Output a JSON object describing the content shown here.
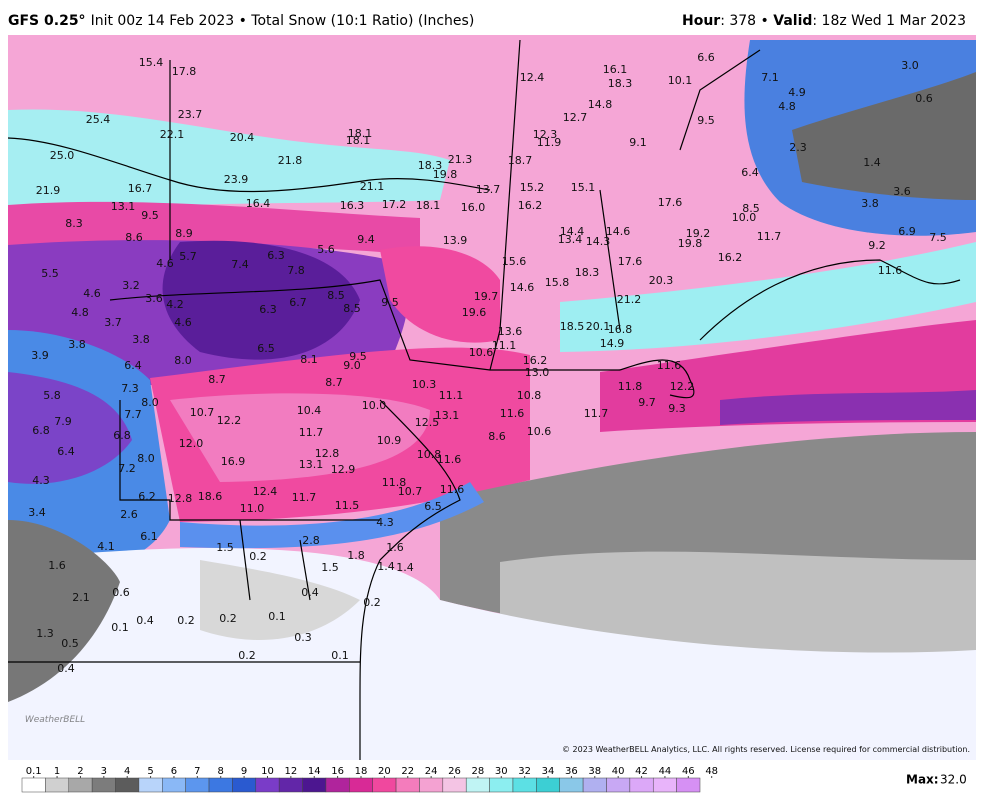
{
  "header": {
    "model": "GFS 0.25°",
    "subtitle": "Init 00z 14 Feb 2023 • Total Snow (10:1 Ratio) (Inches)",
    "hour_label": "Hour",
    "hour_text": ": 378 • ",
    "valid_label": "Valid",
    "valid_text": ": 18z Wed 1 Mar 2023"
  },
  "map": {
    "labels": [
      "15.4",
      "17.8",
      "23.7",
      "25.4",
      "22.1",
      "20.4",
      "18.1",
      "18.1",
      "12.4",
      "16.1",
      "18.3",
      "10.1",
      "6.6",
      "7.1",
      "3.0",
      "0.6",
      "4.9",
      "4.8",
      "14.8",
      "12.7",
      "9.5",
      "12.3",
      "11.9",
      "9.1",
      "2.3",
      "1.4",
      "25.0",
      "21.8",
      "21.3",
      "18.7",
      "18.3",
      "19.8",
      "23.9",
      "21.1",
      "15.2",
      "15.1",
      "6.4",
      "21.9",
      "16.7",
      "13.7",
      "13.1",
      "9.5",
      "16.4",
      "16.3",
      "17.2",
      "18.1",
      "16.0",
      "16.2",
      "17.6",
      "8.5",
      "10.0",
      "3.6",
      "3.8",
      "8.3",
      "8.6",
      "8.9",
      "9.4",
      "13.9",
      "14.4",
      "13.4",
      "14.3",
      "14.6",
      "19.2",
      "19.8",
      "11.7",
      "9.2",
      "6.9",
      "7.5",
      "6.3",
      "5.6",
      "4.6",
      "5.7",
      "7.4",
      "7.8",
      "15.6",
      "17.6",
      "16.2",
      "5.5",
      "18.3",
      "11.6",
      "20.3",
      "14.6",
      "15.8",
      "3.2",
      "4.6",
      "8.5",
      "9.5",
      "8.5",
      "19.7",
      "21.2",
      "3.6",
      "4.2",
      "6.7",
      "6.3",
      "4.8",
      "19.6",
      "3.7",
      "4.6",
      "18.5",
      "20.1",
      "16.8",
      "13.6",
      "3.8",
      "3.8",
      "6.5",
      "14.9",
      "10.6",
      "11.1",
      "3.9",
      "8.0",
      "8.1",
      "9.5",
      "9.0",
      "16.2",
      "6.4",
      "11.6",
      "13.0",
      "8.7",
      "8.7",
      "10.3",
      "7.3",
      "11.1",
      "10.8",
      "11.8",
      "12.2",
      "5.8",
      "8.0",
      "9.7",
      "9.3",
      "10.7",
      "10.4",
      "10.0",
      "7.7",
      "7.9",
      "12.2",
      "12.5",
      "13.1",
      "11.6",
      "11.7",
      "6.8",
      "11.7",
      "10.6",
      "6.8",
      "8.6",
      "12.0",
      "10.9",
      "6.4",
      "16.9",
      "13.1",
      "10.8",
      "11.6",
      "12.8",
      "12.9",
      "8.0",
      "7.2",
      "4.3",
      "11.8",
      "12.4",
      "11.6",
      "10.7",
      "6.2",
      "12.8",
      "18.6",
      "11.7",
      "11.0",
      "11.5",
      "6.5",
      "3.4",
      "2.6",
      "4.3",
      "6.1",
      "2.8",
      "4.1",
      "1.5",
      "0.2",
      "1.6",
      "1.8",
      "1.5",
      "1.4",
      "1.4",
      "1.6",
      "0.6",
      "0.4",
      "2.1",
      "0.2",
      "0.1",
      "0.4",
      "0.2",
      "0.2",
      "0.1",
      "1.3",
      "0.3",
      "0.5",
      "0.2",
      "0.1",
      "0.4"
    ]
  },
  "logo": "WeatherBELL",
  "copyright": "© 2023 WeatherBELL Analytics, LLC. All rights reserved. License required for commercial distribution.",
  "colorbar": {
    "ticks": [
      "0.1",
      "1",
      "2",
      "3",
      "4",
      "5",
      "6",
      "7",
      "8",
      "9",
      "10",
      "12",
      "14",
      "16",
      "18",
      "20",
      "22",
      "24",
      "26",
      "28",
      "30",
      "32",
      "34",
      "36",
      "38",
      "40",
      "42",
      "44",
      "46",
      "48"
    ],
    "colors": [
      "#ffffff",
      "#d0d0d0",
      "#a8a8a8",
      "#7c7c7c",
      "#5c5c5c",
      "#b8d4fa",
      "#8ab8f6",
      "#5c96ee",
      "#3c78e2",
      "#2a5ad0",
      "#7a3cc8",
      "#6226a8",
      "#4c1690",
      "#b0249c",
      "#d82a96",
      "#f0489e",
      "#f47cbc",
      "#f4a2d2",
      "#f4c4e4",
      "#c0f4f4",
      "#8ceef0",
      "#5ce0e4",
      "#3ccfd4",
      "#8ac8e8",
      "#b0b0f0",
      "#c8a8f4",
      "#dca8f8",
      "#e8b4fa",
      "#d690f4"
    ],
    "max_label": "Max:",
    "max": "32.0"
  }
}
